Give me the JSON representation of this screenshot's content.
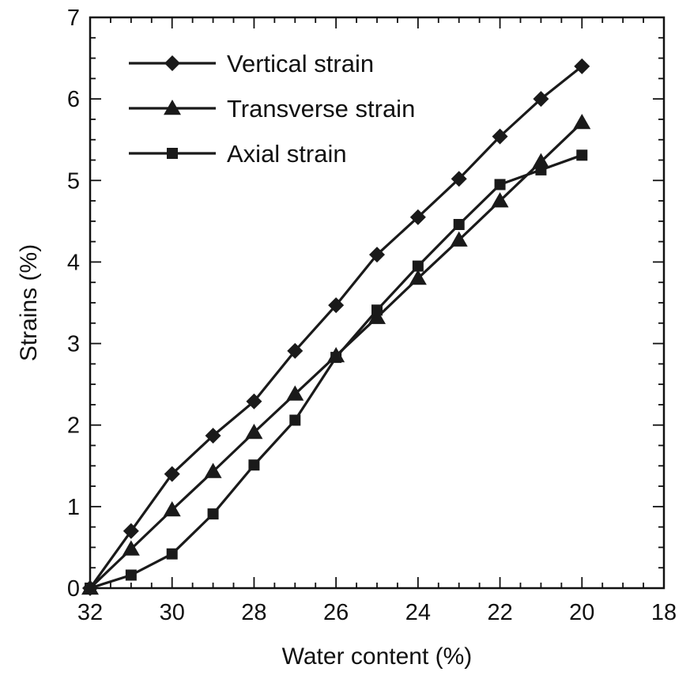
{
  "chart_data": {
    "type": "line",
    "xlabel": "Water content (%)",
    "ylabel": "Strains (%)",
    "xlim": [
      32,
      18
    ],
    "ylim": [
      0,
      7
    ],
    "x_reversed": true,
    "xticks": [
      "32",
      "30",
      "28",
      "26",
      "24",
      "22",
      "20",
      "18"
    ],
    "yticks": [
      "0",
      "1",
      "2",
      "3",
      "4",
      "5",
      "6",
      "7"
    ],
    "legend_position": "top-left",
    "grid": false,
    "x": [
      32,
      31,
      30,
      29,
      28,
      27,
      26,
      25,
      24,
      23,
      22,
      21,
      20
    ],
    "series": [
      {
        "name": "Vertical strain",
        "marker": "diamond",
        "color": "#1a1a1a",
        "values": [
          0.0,
          0.7,
          1.4,
          1.87,
          2.29,
          2.91,
          3.47,
          4.09,
          4.55,
          5.02,
          5.54,
          6.0,
          6.4
        ]
      },
      {
        "name": "Transverse strain",
        "marker": "triangle",
        "color": "#1a1a1a",
        "values": [
          0.0,
          0.48,
          0.96,
          1.43,
          1.91,
          2.38,
          2.85,
          3.32,
          3.8,
          4.27,
          4.75,
          5.23,
          5.71
        ]
      },
      {
        "name": "Axial strain",
        "marker": "square",
        "color": "#1a1a1a",
        "values": [
          0.0,
          0.16,
          0.42,
          0.91,
          1.51,
          2.06,
          2.83,
          3.41,
          3.95,
          4.46,
          4.95,
          5.13,
          5.31
        ]
      }
    ]
  }
}
